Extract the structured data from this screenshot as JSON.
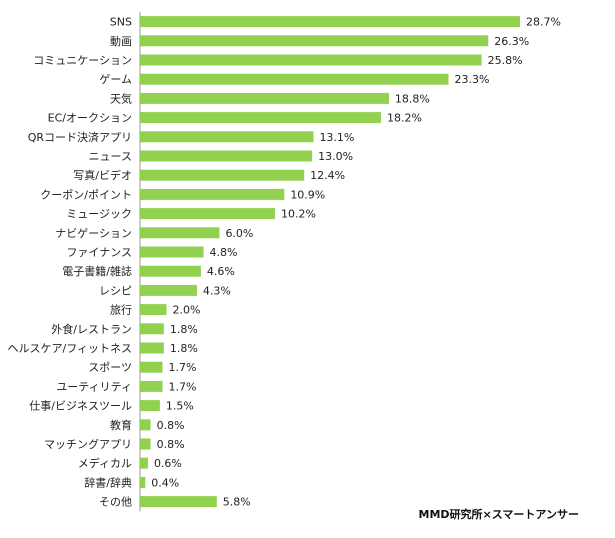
{
  "source": "MMD研究所×スマートアンサー",
  "colors": {
    "bar": "#92d050",
    "axis": "#9a9a9a",
    "text": "#222222"
  },
  "chart_data": {
    "type": "bar",
    "orientation": "horizontal",
    "categories": [
      "SNS",
      "動画",
      "コミュニケーション",
      "ゲーム",
      "天気",
      "EC/オークション",
      "QRコード決済アプリ",
      "ニュース",
      "写真/ビデオ",
      "クーポン/ポイント",
      "ミュージック",
      "ナビゲーション",
      "ファイナンス",
      "電子書籍/雑誌",
      "レシピ",
      "旅行",
      "外食/レストラン",
      "ヘルスケア/フィットネス",
      "スポーツ",
      "ユーティリティ",
      "仕事/ビジネスツール",
      "教育",
      "マッチングアプリ",
      "メディカル",
      "辞書/辞典",
      "その他"
    ],
    "values": [
      28.7,
      26.3,
      25.8,
      23.3,
      18.8,
      18.2,
      13.1,
      13.0,
      12.4,
      10.9,
      10.2,
      6.0,
      4.8,
      4.6,
      4.3,
      2.0,
      1.8,
      1.8,
      1.7,
      1.7,
      1.5,
      0.8,
      0.8,
      0.6,
      0.4,
      5.8
    ],
    "value_labels": [
      "28.7%",
      "26.3%",
      "25.8%",
      "23.3%",
      "18.8%",
      "18.2%",
      "13.1%",
      "13.0%",
      "12.4%",
      "10.9%",
      "10.2%",
      "6.0%",
      "4.8%",
      "4.6%",
      "4.3%",
      "2.0%",
      "1.8%",
      "1.8%",
      "1.7%",
      "1.7%",
      "1.5%",
      "0.8%",
      "0.8%",
      "0.6%",
      "0.4%",
      "5.8%"
    ],
    "unit": "%",
    "grid": false,
    "legend": "none"
  }
}
